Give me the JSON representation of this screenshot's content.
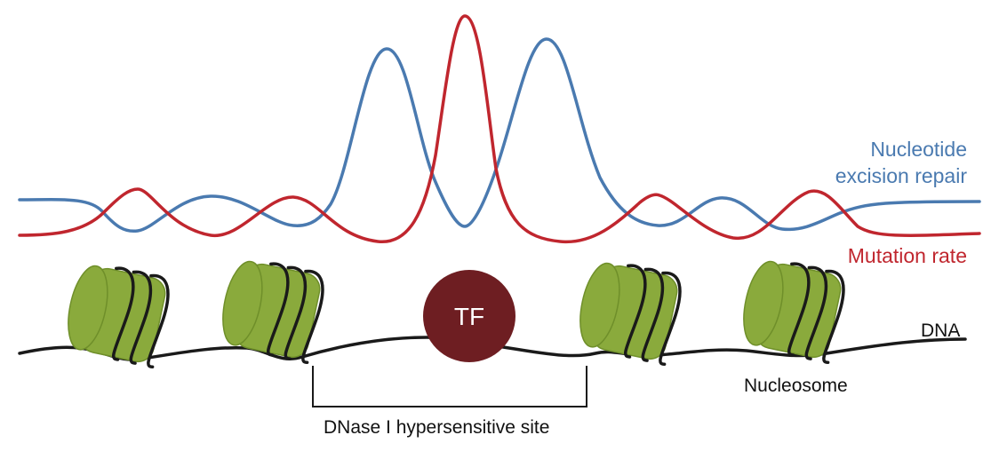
{
  "labels": {
    "ner_line1": "Nucleotide",
    "ner_line2": "excision repair",
    "mutation_rate": "Mutation rate",
    "tf": "TF",
    "dna": "DNA",
    "nucleosome": "Nucleosome",
    "dhs": "DNase I hypersensitive site"
  },
  "colors": {
    "ner": "#4a7ab0",
    "mutation": "#c0262e",
    "dna": "#1a1a1a",
    "nucleosome_fill": "#8aaa3c",
    "nucleosome_dark": "#6f8f2a",
    "tf_fill": "#6e1e22",
    "tf_text": "#ffffff",
    "text": "#111111"
  }
}
